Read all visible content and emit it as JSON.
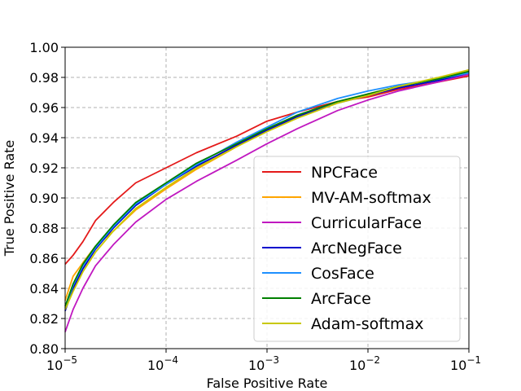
{
  "chart_data": {
    "type": "line",
    "title": "",
    "xlabel": "False Positive Rate",
    "ylabel": "True Positive Rate",
    "xscale": "log",
    "xlim": [
      1e-05,
      0.1
    ],
    "ylim": [
      0.8,
      1.0
    ],
    "grid": true,
    "legend_position": "lower-right",
    "x_ticks": [
      {
        "value": 1e-05,
        "base": "10",
        "exp": "−5"
      },
      {
        "value": 0.0001,
        "base": "10",
        "exp": "−4"
      },
      {
        "value": 0.001,
        "base": "10",
        "exp": "−3"
      },
      {
        "value": 0.01,
        "base": "10",
        "exp": "−2"
      },
      {
        "value": 0.1,
        "base": "10",
        "exp": "−1"
      }
    ],
    "y_ticks": [
      "0.80",
      "0.82",
      "0.84",
      "0.86",
      "0.88",
      "0.90",
      "0.92",
      "0.94",
      "0.96",
      "0.98",
      "1.00"
    ],
    "series": [
      {
        "name": "NPCFace",
        "color": "#e41a1a",
        "x": [
          1e-05,
          1.2e-05,
          1.5e-05,
          2e-05,
          3e-05,
          5e-05,
          0.0001,
          0.0002,
          0.0005,
          0.001,
          0.002,
          0.005,
          0.01,
          0.02,
          0.05,
          0.1
        ],
        "y": [
          0.856,
          0.862,
          0.871,
          0.885,
          0.897,
          0.91,
          0.92,
          0.93,
          0.941,
          0.951,
          0.957,
          0.964,
          0.967,
          0.972,
          0.977,
          0.981
        ]
      },
      {
        "name": "MV-AM-softmax",
        "color": "#ffa500",
        "x": [
          1e-05,
          1.2e-05,
          1.5e-05,
          2e-05,
          3e-05,
          5e-05,
          0.0001,
          0.0002,
          0.0005,
          0.001,
          0.002,
          0.005,
          0.01,
          0.02,
          0.05,
          0.1
        ],
        "y": [
          0.832,
          0.848,
          0.857,
          0.868,
          0.878,
          0.892,
          0.906,
          0.919,
          0.934,
          0.945,
          0.954,
          0.963,
          0.969,
          0.974,
          0.979,
          0.984
        ]
      },
      {
        "name": "CurricularFace",
        "color": "#c018c0",
        "x": [
          1e-05,
          1.2e-05,
          1.5e-05,
          2e-05,
          3e-05,
          5e-05,
          0.0001,
          0.0002,
          0.0005,
          0.001,
          0.002,
          0.005,
          0.01,
          0.02,
          0.05,
          0.1
        ],
        "y": [
          0.811,
          0.826,
          0.84,
          0.855,
          0.869,
          0.884,
          0.899,
          0.911,
          0.925,
          0.936,
          0.946,
          0.958,
          0.965,
          0.971,
          0.977,
          0.982
        ]
      },
      {
        "name": "ArcNegFace",
        "color": "#0000cd",
        "x": [
          1e-05,
          1.2e-05,
          1.5e-05,
          2e-05,
          3e-05,
          5e-05,
          0.0001,
          0.0002,
          0.0005,
          0.001,
          0.002,
          0.005,
          0.01,
          0.02,
          0.05,
          0.1
        ],
        "y": [
          0.825,
          0.84,
          0.853,
          0.866,
          0.88,
          0.895,
          0.909,
          0.921,
          0.935,
          0.945,
          0.954,
          0.963,
          0.968,
          0.973,
          0.978,
          0.983
        ]
      },
      {
        "name": "CosFace",
        "color": "#1e90ff",
        "x": [
          1e-05,
          1.2e-05,
          1.5e-05,
          2e-05,
          3e-05,
          5e-05,
          0.0001,
          0.0002,
          0.0005,
          0.001,
          0.002,
          0.005,
          0.01,
          0.02,
          0.05,
          0.1
        ],
        "y": [
          0.827,
          0.842,
          0.855,
          0.867,
          0.881,
          0.896,
          0.909,
          0.922,
          0.937,
          0.947,
          0.957,
          0.966,
          0.971,
          0.975,
          0.979,
          0.983
        ]
      },
      {
        "name": "ArcFace",
        "color": "#008000",
        "x": [
          1e-05,
          1.2e-05,
          1.5e-05,
          2e-05,
          3e-05,
          5e-05,
          0.0001,
          0.0002,
          0.0005,
          0.001,
          0.002,
          0.005,
          0.01,
          0.02,
          0.05,
          0.1
        ],
        "y": [
          0.828,
          0.843,
          0.856,
          0.868,
          0.882,
          0.897,
          0.91,
          0.923,
          0.936,
          0.946,
          0.955,
          0.964,
          0.969,
          0.974,
          0.979,
          0.984
        ]
      },
      {
        "name": "Adam-softmax",
        "color": "#c8c800",
        "x": [
          1e-05,
          1.2e-05,
          1.5e-05,
          2e-05,
          3e-05,
          5e-05,
          0.0001,
          0.0002,
          0.0005,
          0.001,
          0.002,
          0.005,
          0.01,
          0.02,
          0.05,
          0.1
        ],
        "y": [
          0.826,
          0.838,
          0.851,
          0.864,
          0.878,
          0.893,
          0.907,
          0.92,
          0.934,
          0.944,
          0.953,
          0.963,
          0.968,
          0.974,
          0.98,
          0.985
        ]
      }
    ]
  }
}
